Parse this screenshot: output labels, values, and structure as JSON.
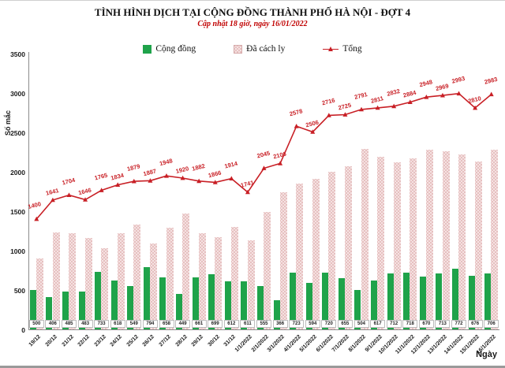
{
  "header": {
    "title": "TÌNH HÌNH DỊCH TẠI CỘNG ĐỒNG THÀNH PHỐ HÀ NỘI - ĐỢT 4",
    "subtitle": "Cập nhật 18 giờ, ngày 16/01/2022"
  },
  "legend": [
    {
      "label": "Cộng đồng",
      "color": "#1fa34a",
      "type": "bar-solid"
    },
    {
      "label": "Đã cách ly",
      "color": "#f5e2e2",
      "type": "bar-pattern"
    },
    {
      "label": "Tổng",
      "color": "#c81f25",
      "type": "line"
    }
  ],
  "axes": {
    "y_title": "Số mắc",
    "x_title": "Ngày",
    "y_ticks": [
      0,
      500,
      1000,
      1500,
      2000,
      2500,
      3000,
      3500
    ],
    "y_max": 3500
  },
  "chart_data": {
    "type": "bar+line",
    "title": "TÌNH HÌNH DỊCH TẠI CỘNG ĐỒNG THÀNH PHỐ HÀ NỘI - ĐỢT 4",
    "subtitle": "Cập nhật 18 giờ, ngày 16/01/2022",
    "xlabel": "Ngày",
    "ylabel": "Số mắc",
    "ylim": [
      0,
      3500
    ],
    "grid": false,
    "legend_position": "top",
    "categories": [
      "19/12",
      "20/12",
      "21/12",
      "22/12",
      "23/12",
      "24/12",
      "25/12",
      "26/12",
      "27/12",
      "28/12",
      "29/12",
      "30/12",
      "31/12",
      "1/1/2022",
      "2/1/2022",
      "3/1/2022",
      "4/1/2022",
      "5/1/2022",
      "6/1/2022",
      "7/1/2022",
      "8/1/2022",
      "9/1/2022",
      "10/1/2022",
      "11/1/2022",
      "12/1/2022",
      "13/1/2022",
      "14/1/2022",
      "15/1/2022",
      "16/1/2022"
    ],
    "series": [
      {
        "name": "Cộng đồng",
        "type": "bar",
        "color": "#1fa34a",
        "labeled": true,
        "values": [
          500,
          406,
          485,
          483,
          733,
          618,
          549,
          794,
          658,
          449,
          661,
          699,
          612,
          611,
          555,
          366,
          723,
          594,
          720,
          655,
          504,
          617,
          712,
          718,
          670,
          713,
          772,
          676,
          706
        ]
      },
      {
        "name": "Đã cách ly",
        "type": "bar",
        "color": "#f5e2e2",
        "pattern": "dots",
        "labeled": false,
        "values": [
          900,
          1235,
          1219,
          1163,
          1032,
          1216,
          1330,
          1093,
          1290,
          1471,
          1221,
          1167,
          1302,
          1130,
          1490,
          1740,
          1855,
          1912,
          1996,
          2070,
          2287,
          2194,
          2120,
          2166,
          2278,
          2256,
          2221,
          2134,
          2277
        ]
      },
      {
        "name": "Tổng",
        "type": "line",
        "color": "#c81f25",
        "labeled": true,
        "values": [
          1400,
          1641,
          1704,
          1646,
          1765,
          1834,
          1879,
          1887,
          1948,
          1920,
          1882,
          1866,
          1914,
          1741,
          2045,
          2106,
          2578,
          2506,
          2716,
          2725,
          2791,
          2811,
          2832,
          2884,
          2948,
          2969,
          2993,
          2810,
          2983
        ]
      }
    ]
  }
}
